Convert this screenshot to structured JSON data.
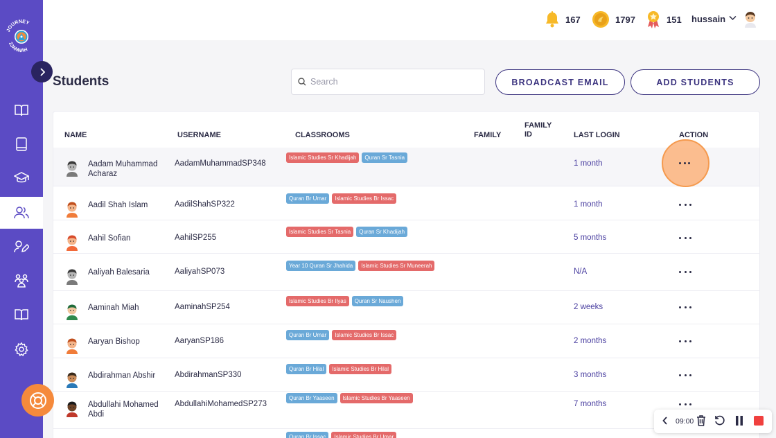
{
  "app": {
    "logo_text": "JOURNEY 2 JANNAH"
  },
  "sidebar": {
    "items": [
      {
        "icon": "open-book-icon"
      },
      {
        "icon": "book-icon"
      },
      {
        "icon": "graduation-cap-icon"
      },
      {
        "icon": "users-icon",
        "active": true
      },
      {
        "icon": "user-edit-icon"
      },
      {
        "icon": "group-icon"
      },
      {
        "icon": "reading-book-icon"
      },
      {
        "icon": "gear-icon"
      }
    ]
  },
  "header": {
    "notifications": "167",
    "coins": "1797",
    "badges": "151",
    "username": "hussain"
  },
  "page": {
    "title": "Students",
    "search_placeholder": "Search",
    "broadcast_label": "BROADCAST EMAIL",
    "add_label": "ADD STUDENTS"
  },
  "table": {
    "columns": {
      "name": "NAME",
      "username": "USERNAME",
      "classrooms": "CLASSROOMS",
      "family": "FAMILY",
      "family_id_1": "FAMILY",
      "family_id_2": "ID",
      "last_login": "LAST LOGIN",
      "action": "ACTION"
    },
    "rows": [
      {
        "name": "Aadam Muhammad Acharaz",
        "username": "AadamMuhammadSP348",
        "tags": [
          {
            "text": "Islamic Studies Sr Khadijah",
            "color": "red"
          },
          {
            "text": "Quran Sr Tasnia",
            "color": "blue"
          }
        ],
        "last_login": "1 month",
        "avatar": "grey"
      },
      {
        "name": "Aadil Shah Islam",
        "username": "AadilShahSP322",
        "tags": [
          {
            "text": "Quran Br Umar",
            "color": "blue"
          },
          {
            "text": "Islamic Studies Br Issac",
            "color": "red"
          }
        ],
        "last_login": "1 month",
        "avatar": "orange"
      },
      {
        "name": "Aahil Sofian",
        "username": "AahilSP255",
        "tags": [
          {
            "text": "Islamic Studies Sr Tasnia",
            "color": "red"
          },
          {
            "text": "Quran Sr Khadijah",
            "color": "blue"
          }
        ],
        "last_login": "5 months",
        "avatar": "red"
      },
      {
        "name": "Aaliyah Balesaria",
        "username": "AaliyahSP073",
        "tags": [
          {
            "text": "Year 10 Quran Sr Jhahida",
            "color": "blue"
          },
          {
            "text": "Islamic Studies Sr Muneerah",
            "color": "red"
          }
        ],
        "last_login": "N/A",
        "avatar": "grey"
      },
      {
        "name": "Aaminah Miah",
        "username": "AaminahSP254",
        "tags": [
          {
            "text": "Islamic Studies Br Ilyas",
            "color": "red"
          },
          {
            "text": "Quran Sr Naushen",
            "color": "blue"
          }
        ],
        "last_login": "2 weeks",
        "avatar": "green"
      },
      {
        "name": "Aaryan Bishop",
        "username": "AaryanSP186",
        "tags": [
          {
            "text": "Quran Br Umar",
            "color": "blue"
          },
          {
            "text": "Islamic Studies Br Issac",
            "color": "red"
          }
        ],
        "last_login": "2 months",
        "avatar": "orange"
      },
      {
        "name": "Abdirahman Abshir",
        "username": "AbdirahmanSP330",
        "tags": [
          {
            "text": "Quran Br Hilal",
            "color": "blue"
          },
          {
            "text": "Islamic Studies Br Hilal",
            "color": "red"
          }
        ],
        "last_login": "3 months",
        "avatar": "brown"
      },
      {
        "name": "Abdullahi Mohamed Abdi",
        "username": "AbdullahiMohamedSP273",
        "tags": [
          {
            "text": "Quran Br Yaaseen",
            "color": "blue"
          },
          {
            "text": "Islamic Studies Br Yaaseen",
            "color": "red"
          }
        ],
        "last_login": "7 months",
        "avatar": "dark"
      },
      {
        "name": "",
        "username": "",
        "tags": [
          {
            "text": "Quran Br Issac",
            "color": "blue"
          },
          {
            "text": "Islamic Studies Br Umar",
            "color": "red"
          }
        ],
        "last_login": "",
        "avatar": ""
      }
    ]
  },
  "recorder": {
    "time": "09:00"
  }
}
